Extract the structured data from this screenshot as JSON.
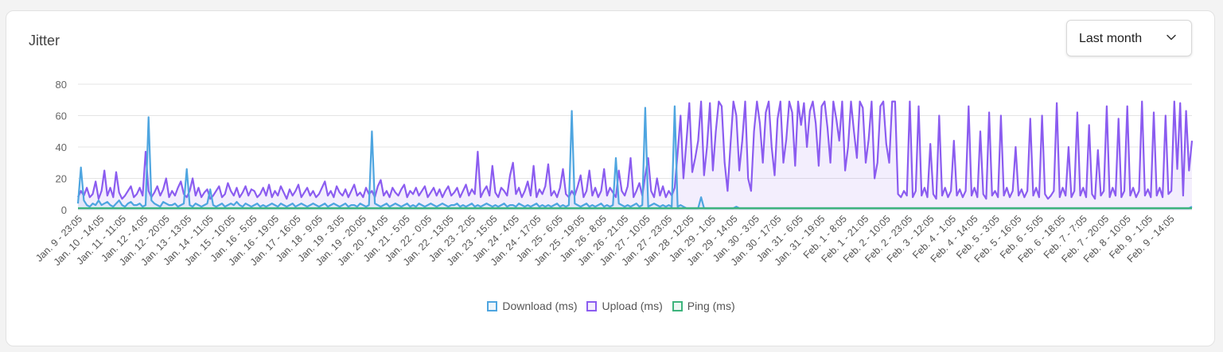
{
  "card": {
    "title": "Jitter"
  },
  "range_select": {
    "value": "Last month",
    "icon": "chevron-down-icon"
  },
  "chart_data": {
    "type": "line",
    "title": "Jitter",
    "ylim": [
      0,
      80
    ],
    "yticks": [
      0,
      20,
      40,
      60,
      80
    ],
    "grid": true,
    "legend_placement": "bottom",
    "x_tick_labels": [
      "Jan. 9 - 23:05",
      "Jan. 10 - 14:05",
      "Jan. 11 - 11:05",
      "Jan. 12 - 4:05",
      "Jan. 12 - 20:05",
      "Jan. 13 - 13:05",
      "Jan. 14 - 11:05",
      "Jan. 15 - 10:05",
      "Jan. 16 - 5:05",
      "Jan. 16 - 19:05",
      "Jan. 17 - 16:05",
      "Jan. 18 - 9:05",
      "Jan. 19 - 3:05",
      "Jan. 19 - 20:05",
      "Jan. 20 - 14:05",
      "Jan. 21 - 5:05",
      "Jan. 22 - 0:05",
      "Jan. 22 - 13:05",
      "Jan. 23 - 2:05",
      "Jan. 23 - 15:05",
      "Jan. 24 - 4:05",
      "Jan. 24 - 17:05",
      "Jan. 25 - 6:05",
      "Jan. 25 - 19:05",
      "Jan. 26 - 8:05",
      "Jan. 26 - 21:05",
      "Jan. 27 - 10:05",
      "Jan. 27 - 23:05",
      "Jan. 28 - 12:05",
      "Jan. 29 - 1:05",
      "Jan. 29 - 14:05",
      "Jan. 30 - 3:05",
      "Jan. 30 - 17:05",
      "Jan. 31 - 6:05",
      "Jan. 31 - 19:05",
      "Feb. 1 - 8:05",
      "Feb. 1 - 21:05",
      "Feb. 2 - 10:05",
      "Feb. 2 - 23:05",
      "Feb. 3 - 12:05",
      "Feb. 4 - 1:05",
      "Feb. 4 - 14:05",
      "Feb. 5 - 3:05",
      "Feb. 5 - 16:05",
      "Feb. 6 - 5:05",
      "Feb. 6 - 18:05",
      "Feb. 7 - 7:05",
      "Feb. 7 - 20:05",
      "Feb. 8 - 10:05",
      "Feb. 9 - 1:05",
      "Feb. 9 - 14:05"
    ],
    "series": [
      {
        "name": "Download (ms)",
        "color": "#4ea5e0",
        "fill": "rgba(78,165,224,0.10)",
        "values": [
          4,
          27,
          6,
          3,
          2,
          4,
          3,
          6,
          3,
          4,
          5,
          3,
          2,
          4,
          6,
          3,
          2,
          4,
          5,
          3,
          3,
          4,
          2,
          3,
          59,
          6,
          4,
          3,
          2,
          5,
          4,
          3,
          3,
          4,
          2,
          3,
          4,
          26,
          3,
          2,
          4,
          3,
          2,
          3,
          4,
          13,
          3,
          2,
          3,
          4,
          2,
          3,
          4,
          3,
          5,
          3,
          2,
          4,
          3,
          2,
          3,
          4,
          2,
          3,
          2,
          3,
          4,
          3,
          2,
          4,
          3,
          2,
          3,
          4,
          2,
          3,
          4,
          3,
          2,
          3,
          4,
          3,
          2,
          3,
          4,
          2,
          3,
          4,
          3,
          2,
          3,
          4,
          2,
          3,
          3,
          2,
          4,
          3,
          2,
          3,
          50,
          4,
          3,
          2,
          3,
          4,
          2,
          3,
          4,
          3,
          2,
          3,
          4,
          2,
          3,
          2,
          4,
          3,
          2,
          3,
          4,
          3,
          2,
          3,
          4,
          3,
          2,
          3,
          3,
          4,
          2,
          3,
          2,
          3,
          4,
          2,
          3,
          2,
          3,
          4,
          3,
          2,
          3,
          2,
          3,
          4,
          2,
          3,
          3,
          2,
          4,
          3,
          2,
          3,
          2,
          3,
          4,
          2,
          3,
          2,
          3,
          2,
          3,
          4,
          2,
          3,
          2,
          3,
          63,
          4,
          3,
          2,
          3,
          4,
          2,
          3,
          2,
          3,
          4,
          2,
          3,
          2,
          3,
          33,
          4,
          3,
          2,
          3,
          2,
          3,
          4,
          2,
          3,
          65,
          2,
          3,
          4,
          3,
          2,
          3,
          2,
          3,
          2,
          66,
          2,
          3,
          2,
          1,
          1,
          1,
          1,
          1,
          8,
          1,
          1,
          1,
          1,
          1,
          1,
          1,
          1,
          1,
          1,
          1,
          2,
          1,
          1,
          1,
          1,
          1,
          1,
          1,
          1,
          1,
          1,
          1,
          1,
          1,
          1,
          1,
          1,
          1,
          1,
          1,
          1,
          1,
          1,
          1,
          1,
          1,
          1,
          1,
          1,
          1,
          1,
          1,
          1,
          1,
          1,
          1,
          1,
          1,
          1,
          1,
          1,
          1,
          1,
          1,
          1,
          1,
          1,
          1,
          1,
          1,
          1,
          1,
          1,
          1,
          1,
          1,
          1,
          1,
          1,
          1,
          1,
          1,
          1,
          1,
          1,
          1,
          1,
          1,
          1,
          1,
          1,
          1,
          1,
          1,
          1,
          1,
          1,
          1,
          1,
          1,
          1,
          1,
          1,
          1,
          1,
          1,
          1,
          1,
          1,
          1,
          1,
          1,
          1,
          1,
          1,
          1,
          1,
          1,
          1,
          1,
          1,
          1,
          1,
          1,
          1,
          1,
          1,
          1,
          1,
          1,
          1,
          1,
          1,
          1,
          1,
          1,
          1,
          1,
          1,
          1,
          1,
          1,
          1,
          1,
          1,
          1,
          1,
          1,
          1,
          1,
          1,
          1,
          1,
          1,
          1,
          1,
          1,
          1,
          1,
          1,
          1,
          1,
          1,
          1,
          1,
          1,
          1,
          1,
          1,
          1,
          1,
          1,
          1,
          1,
          1,
          2
        ]
      },
      {
        "name": "Upload (ms)",
        "color": "#8b5cf0",
        "fill": "rgba(139,92,240,0.10)",
        "values": [
          8,
          12,
          9,
          14,
          8,
          10,
          18,
          7,
          12,
          25,
          9,
          14,
          8,
          24,
          11,
          7,
          9,
          12,
          15,
          8,
          10,
          14,
          9,
          37,
          12,
          8,
          11,
          15,
          9,
          13,
          20,
          8,
          12,
          9,
          14,
          18,
          10,
          8,
          12,
          20,
          9,
          14,
          8,
          11,
          13,
          7,
          9,
          12,
          15,
          8,
          10,
          17,
          12,
          9,
          14,
          8,
          11,
          15,
          9,
          13,
          12,
          8,
          10,
          14,
          9,
          16,
          8,
          12,
          9,
          15,
          11,
          7,
          13,
          9,
          12,
          16,
          8,
          11,
          14,
          9,
          12,
          8,
          10,
          14,
          18,
          9,
          12,
          8,
          15,
          11,
          9,
          13,
          8,
          12,
          16,
          9,
          11,
          8,
          14,
          10,
          12,
          8,
          15,
          19,
          9,
          12,
          8,
          14,
          11,
          9,
          13,
          16,
          8,
          12,
          10,
          14,
          9,
          12,
          15,
          8,
          11,
          14,
          9,
          13,
          8,
          12,
          15,
          9,
          11,
          14,
          8,
          12,
          16,
          9,
          13,
          10,
          37,
          8,
          12,
          15,
          9,
          28,
          11,
          8,
          14,
          12,
          9,
          22,
          30,
          10,
          14,
          8,
          12,
          18,
          9,
          28,
          8,
          13,
          10,
          15,
          29,
          9,
          12,
          8,
          14,
          26,
          10,
          8,
          12,
          9,
          15,
          22,
          8,
          12,
          25,
          9,
          14,
          8,
          12,
          26,
          9,
          14,
          11,
          8,
          25,
          12,
          9,
          15,
          33,
          8,
          12,
          17,
          9,
          22,
          33,
          12,
          8,
          20,
          9,
          15,
          8,
          12,
          9,
          14,
          36,
          60,
          20,
          43,
          68,
          24,
          33,
          44,
          69,
          22,
          40,
          68,
          25,
          50,
          69,
          66,
          30,
          12,
          42,
          69,
          60,
          25,
          44,
          69,
          20,
          12,
          50,
          69,
          55,
          30,
          62,
          69,
          40,
          22,
          58,
          69,
          30,
          45,
          69,
          62,
          28,
          69,
          54,
          68,
          40,
          63,
          69,
          55,
          28,
          66,
          69,
          52,
          30,
          69,
          58,
          44,
          69,
          25,
          40,
          69,
          50,
          33,
          69,
          65,
          30,
          45,
          69,
          20,
          30,
          66,
          69,
          42,
          30,
          69,
          69,
          10,
          8,
          12,
          9,
          69,
          8,
          12,
          66,
          9,
          14,
          8,
          42,
          10,
          7,
          60,
          9,
          14,
          8,
          12,
          44,
          9,
          13,
          8,
          12,
          66,
          9,
          14,
          8,
          50,
          10,
          7,
          62,
          9,
          12,
          8,
          60,
          9,
          14,
          8,
          12,
          40,
          9,
          13,
          8,
          12,
          58,
          9,
          14,
          8,
          60,
          10,
          7,
          9,
          12,
          68,
          8,
          14,
          9,
          40,
          8,
          12,
          62,
          9,
          14,
          8,
          54,
          10,
          7,
          38,
          9,
          12,
          66,
          8,
          14,
          9,
          58,
          8,
          12,
          66,
          9,
          14,
          8,
          12,
          69,
          9,
          13,
          8,
          62,
          9,
          14,
          8,
          60,
          10,
          12,
          69,
          26,
          68,
          9,
          63,
          25,
          44
        ]
      },
      {
        "name": "Ping (ms)",
        "color": "#3db47c",
        "fill": "rgba(61,180,124,0.10)",
        "values": [
          1,
          1,
          1,
          1,
          1,
          1,
          1,
          1,
          1,
          1,
          1,
          1,
          1,
          1,
          1,
          1,
          1,
          1,
          1,
          1,
          1,
          1,
          1,
          1,
          1,
          1,
          1,
          1,
          1,
          1,
          1,
          1,
          1,
          1,
          1,
          1,
          1,
          1,
          1,
          1,
          1,
          1,
          1,
          1,
          1,
          1,
          1,
          1,
          1,
          1,
          1,
          1,
          1,
          1,
          1,
          1,
          1,
          1,
          1,
          1,
          1,
          1,
          1,
          1,
          1,
          1,
          1,
          1,
          1,
          1,
          1,
          1,
          1,
          1,
          1,
          1,
          1,
          1,
          1,
          1,
          1,
          1,
          1,
          1,
          1,
          1,
          1,
          1,
          1,
          1,
          1,
          1,
          1,
          1,
          1,
          1,
          1,
          1,
          1,
          1,
          1,
          1,
          1,
          1,
          1,
          1,
          1,
          1,
          1,
          1,
          1,
          1,
          1,
          1,
          1,
          1,
          1,
          1,
          1,
          1,
          1,
          1,
          1,
          1,
          1,
          1,
          1,
          1,
          1,
          1,
          1,
          1,
          1,
          1,
          1,
          1,
          1,
          1,
          1,
          1,
          1,
          1,
          1,
          1,
          1,
          1,
          1,
          1,
          1,
          1,
          1,
          1,
          1,
          1,
          1,
          1,
          1,
          1,
          1,
          1,
          1,
          1,
          1,
          1,
          1,
          1,
          1,
          1,
          1,
          1,
          1,
          1,
          1,
          1,
          1,
          1,
          1,
          1,
          1,
          1,
          1,
          1,
          1,
          1,
          1,
          1,
          1,
          1,
          1,
          1,
          1,
          1,
          1,
          1,
          1,
          1,
          1,
          1,
          1,
          1,
          1,
          1,
          1,
          1,
          1,
          1,
          1,
          1,
          1,
          1,
          1,
          1,
          1,
          1,
          1,
          1,
          1,
          1,
          1,
          1,
          1,
          1,
          1,
          1,
          1,
          1,
          1,
          1,
          1,
          1,
          1,
          1,
          1,
          1,
          1,
          1,
          1,
          1,
          1,
          1,
          1,
          1,
          1,
          1,
          1,
          1,
          1,
          1,
          1,
          1,
          1,
          1,
          1,
          1,
          1,
          1,
          1,
          1,
          1,
          1,
          1,
          1,
          1,
          1,
          1,
          1,
          1,
          1,
          1,
          1,
          1,
          1,
          1,
          1,
          1,
          1,
          1,
          1,
          1,
          1,
          1,
          1,
          1,
          1,
          1,
          1,
          1,
          1,
          1,
          1,
          1,
          1,
          1,
          1,
          1,
          1,
          1,
          1,
          1,
          1,
          1,
          1,
          1,
          1,
          1,
          1,
          1,
          1,
          1,
          1,
          1,
          1,
          1,
          1,
          1,
          1,
          1,
          1,
          1,
          1,
          1,
          1,
          1,
          1,
          1,
          1,
          1,
          1,
          1,
          1,
          1,
          1,
          1,
          1,
          1,
          1,
          1,
          1,
          1,
          1,
          1,
          1,
          1,
          1,
          1,
          1,
          1,
          1,
          1,
          1,
          1,
          1,
          1,
          1,
          1,
          1,
          1,
          1,
          1,
          1,
          1,
          1,
          1,
          1,
          1,
          1,
          1,
          1,
          1,
          1,
          1,
          1,
          1,
          1,
          1,
          1,
          1,
          1,
          1,
          1
        ]
      }
    ]
  }
}
